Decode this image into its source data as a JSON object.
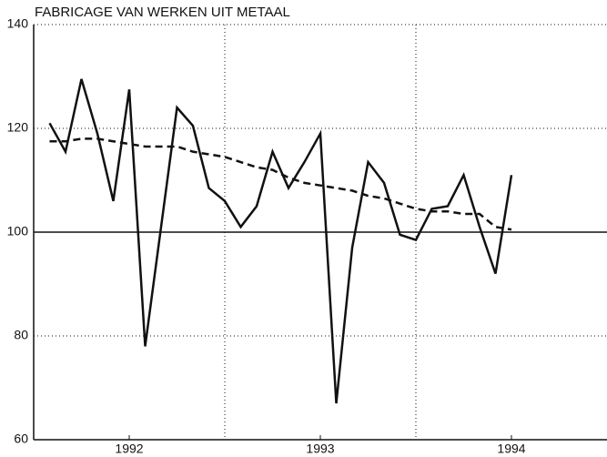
{
  "chart_data": {
    "type": "line",
    "title": "FABRICAGE VAN WERKEN UIT METAAL",
    "x": [
      1,
      2,
      3,
      4,
      5,
      6,
      7,
      8,
      9,
      10,
      11,
      12,
      13,
      14,
      15,
      16,
      17,
      18,
      19,
      20,
      21,
      22,
      23,
      24,
      25,
      26,
      27,
      28,
      29,
      30
    ],
    "series": [
      {
        "color": "#111111",
        "dash": "solid",
        "values": [
          121,
          115.5,
          129.5,
          119,
          106,
          127.5,
          78,
          101,
          124,
          120.5,
          108.5,
          106,
          101,
          105,
          115.5,
          108.5,
          113.5,
          119,
          67,
          97,
          113.5,
          109.5,
          99.5,
          98.5,
          104.5,
          105,
          111,
          101,
          92,
          111
        ]
      },
      {
        "color": "#111111",
        "dash": "dashed",
        "values": [
          117.5,
          117.5,
          118,
          118,
          117.5,
          117,
          116.5,
          116.5,
          116.5,
          115.5,
          115,
          114.5,
          113.5,
          112.5,
          112,
          110.5,
          109.5,
          109,
          108.5,
          108,
          107,
          106.5,
          105.5,
          104.5,
          104,
          104,
          103.5,
          103.5,
          101,
          100.5
        ]
      }
    ],
    "xlim": [
      0,
      36
    ],
    "xticks": [
      {
        "value": 6,
        "label": "1992"
      },
      {
        "value": 18,
        "label": "1993"
      },
      {
        "value": 30,
        "label": "1994"
      }
    ],
    "x_gridlines": [
      12,
      24
    ],
    "ylim": [
      60,
      140
    ],
    "yticks": [
      60,
      80,
      100,
      120,
      140
    ],
    "grid": true
  }
}
